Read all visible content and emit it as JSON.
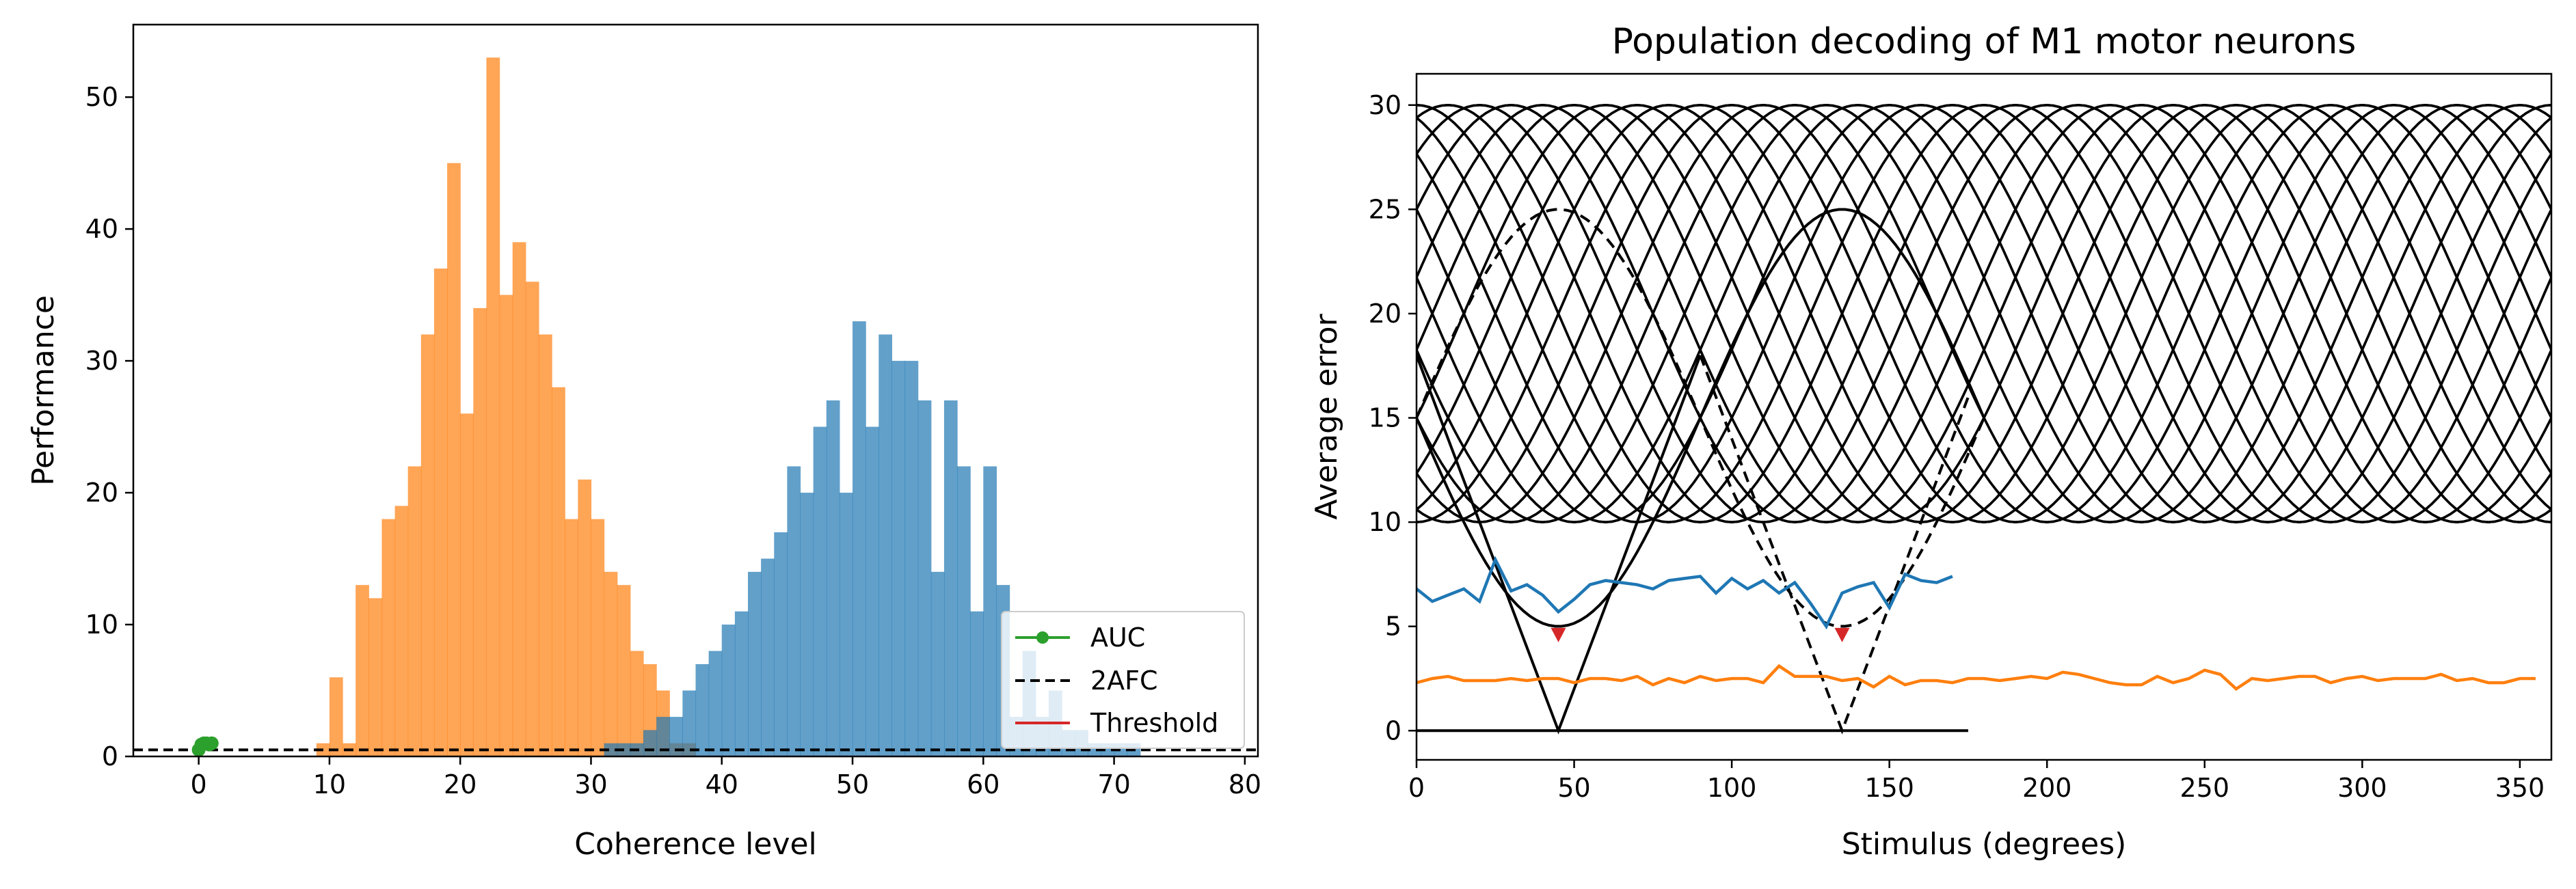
{
  "colors": {
    "orange": "#ff7f0e",
    "blue": "#1f77b4",
    "green": "#2ca02c",
    "red": "#d62728",
    "black": "#000000"
  },
  "chart_data": [
    {
      "type": "bar",
      "title": "",
      "xlabel": "Coherence level",
      "ylabel": "Performance",
      "xlim": [
        -5,
        81
      ],
      "ylim": [
        0,
        55.5
      ],
      "xticks": [
        "0",
        "10",
        "20",
        "30",
        "40",
        "50",
        "60",
        "70",
        "80"
      ],
      "yticks": [
        "0",
        "10",
        "20",
        "30",
        "40",
        "50"
      ],
      "bin_width": 1,
      "series": [
        {
          "color": "orange",
          "bin_start": 9,
          "values": [
            1,
            6,
            1,
            13,
            12,
            18,
            19,
            22,
            32,
            37,
            45,
            26,
            34,
            53,
            35,
            39,
            36,
            32,
            28,
            18,
            21,
            18,
            14,
            13,
            8,
            7,
            5,
            1,
            1
          ]
        },
        {
          "color": "blue",
          "bin_start": 31,
          "values": [
            1,
            1,
            1,
            2,
            3,
            3,
            5,
            7,
            8,
            10,
            11,
            14,
            15,
            17,
            22,
            20,
            25,
            27,
            20,
            33,
            25,
            32,
            30,
            30,
            27,
            14,
            27,
            22,
            11,
            22,
            13,
            3,
            8,
            3,
            5,
            2,
            2,
            1,
            1,
            1,
            1
          ]
        }
      ],
      "lines": [
        {
          "name": "AUC",
          "color": "green",
          "marker": "o",
          "points": [
            [
              0,
              0.5
            ],
            [
              0.2,
              0.9
            ],
            [
              0.4,
              1.0
            ],
            [
              0.6,
              1.0
            ],
            [
              0.8,
              0.9
            ],
            [
              1.0,
              1.0
            ]
          ]
        },
        {
          "name": "2AFC",
          "color": "black",
          "style": "dashed",
          "y": 0.5
        },
        {
          "name": "Threshold",
          "color": "red"
        }
      ],
      "legend": {
        "position": "lower right",
        "entries": [
          "AUC",
          "2AFC",
          "Threshold"
        ]
      }
    },
    {
      "type": "line",
      "title": "Population decoding of M1 motor neurons",
      "xlabel": "Stimulus (degrees)",
      "ylabel": "Average error",
      "xlim": [
        0,
        360
      ],
      "ylim": [
        -1.4,
        31.5
      ],
      "xticks": [
        "0",
        "50",
        "100",
        "150",
        "200",
        "250",
        "300",
        "350"
      ],
      "yticks": [
        "0",
        "5",
        "10",
        "15",
        "20",
        "25",
        "30"
      ],
      "tuning_curves": {
        "count": 36,
        "baseline": 10,
        "amplitude": 20,
        "period_deg": 180,
        "spacing_deg": 10
      },
      "template_curves": [
        {
          "style": "dashed",
          "peak_x": 45,
          "peak_y": 25,
          "baseline": 15,
          "period_deg": 180
        },
        {
          "style": "solid",
          "peak_x": 135,
          "peak_y": 25,
          "baseline": 15,
          "period_deg": 180
        }
      ],
      "v_lines": [
        {
          "style": "solid",
          "points": [
            [
              0,
              18
            ],
            [
              45,
              0
            ],
            [
              90,
              18
            ]
          ]
        },
        {
          "style": "dashed",
          "points": [
            [
              90,
              18
            ],
            [
              135,
              0
            ],
            [
              175,
              16
            ]
          ]
        }
      ],
      "baseline_line": {
        "x": [
          0,
          175
        ],
        "y": 0
      },
      "series": [
        {
          "color": "blue",
          "x_step": 5,
          "values": [
            6.8,
            6.2,
            6.5,
            6.8,
            6.2,
            8.2,
            6.7,
            7.0,
            6.5,
            5.7,
            6.3,
            7.0,
            7.2,
            7.1,
            7.0,
            6.8,
            7.2,
            7.3,
            7.4,
            6.6,
            7.3,
            6.8,
            7.2,
            6.6,
            7.1,
            6.1,
            5.0,
            6.6,
            6.9,
            7.1,
            5.9,
            7.5,
            7.2,
            7.1,
            7.4
          ]
        },
        {
          "color": "orange",
          "x_step": 5,
          "values": [
            2.3,
            2.5,
            2.6,
            2.4,
            2.4,
            2.4,
            2.5,
            2.4,
            2.5,
            2.5,
            2.3,
            2.5,
            2.5,
            2.4,
            2.6,
            2.2,
            2.5,
            2.3,
            2.6,
            2.4,
            2.5,
            2.5,
            2.3,
            3.1,
            2.6,
            2.6,
            2.6,
            2.4,
            2.5,
            2.1,
            2.6,
            2.2,
            2.4,
            2.4,
            2.3,
            2.5,
            2.5,
            2.4,
            2.5,
            2.6,
            2.5,
            2.8,
            2.7,
            2.5,
            2.3,
            2.2,
            2.2,
            2.6,
            2.3,
            2.5,
            2.9,
            2.7,
            2.0,
            2.5,
            2.4,
            2.5,
            2.6,
            2.6,
            2.3,
            2.5,
            2.6,
            2.4,
            2.5,
            2.5,
            2.5,
            2.7,
            2.4,
            2.5,
            2.3,
            2.3,
            2.5,
            2.5
          ]
        }
      ],
      "markers": [
        {
          "color": "red",
          "shape": "triangle-down",
          "x": 45,
          "y": 4.6
        },
        {
          "color": "red",
          "shape": "triangle-down",
          "x": 135,
          "y": 4.6
        }
      ]
    }
  ]
}
